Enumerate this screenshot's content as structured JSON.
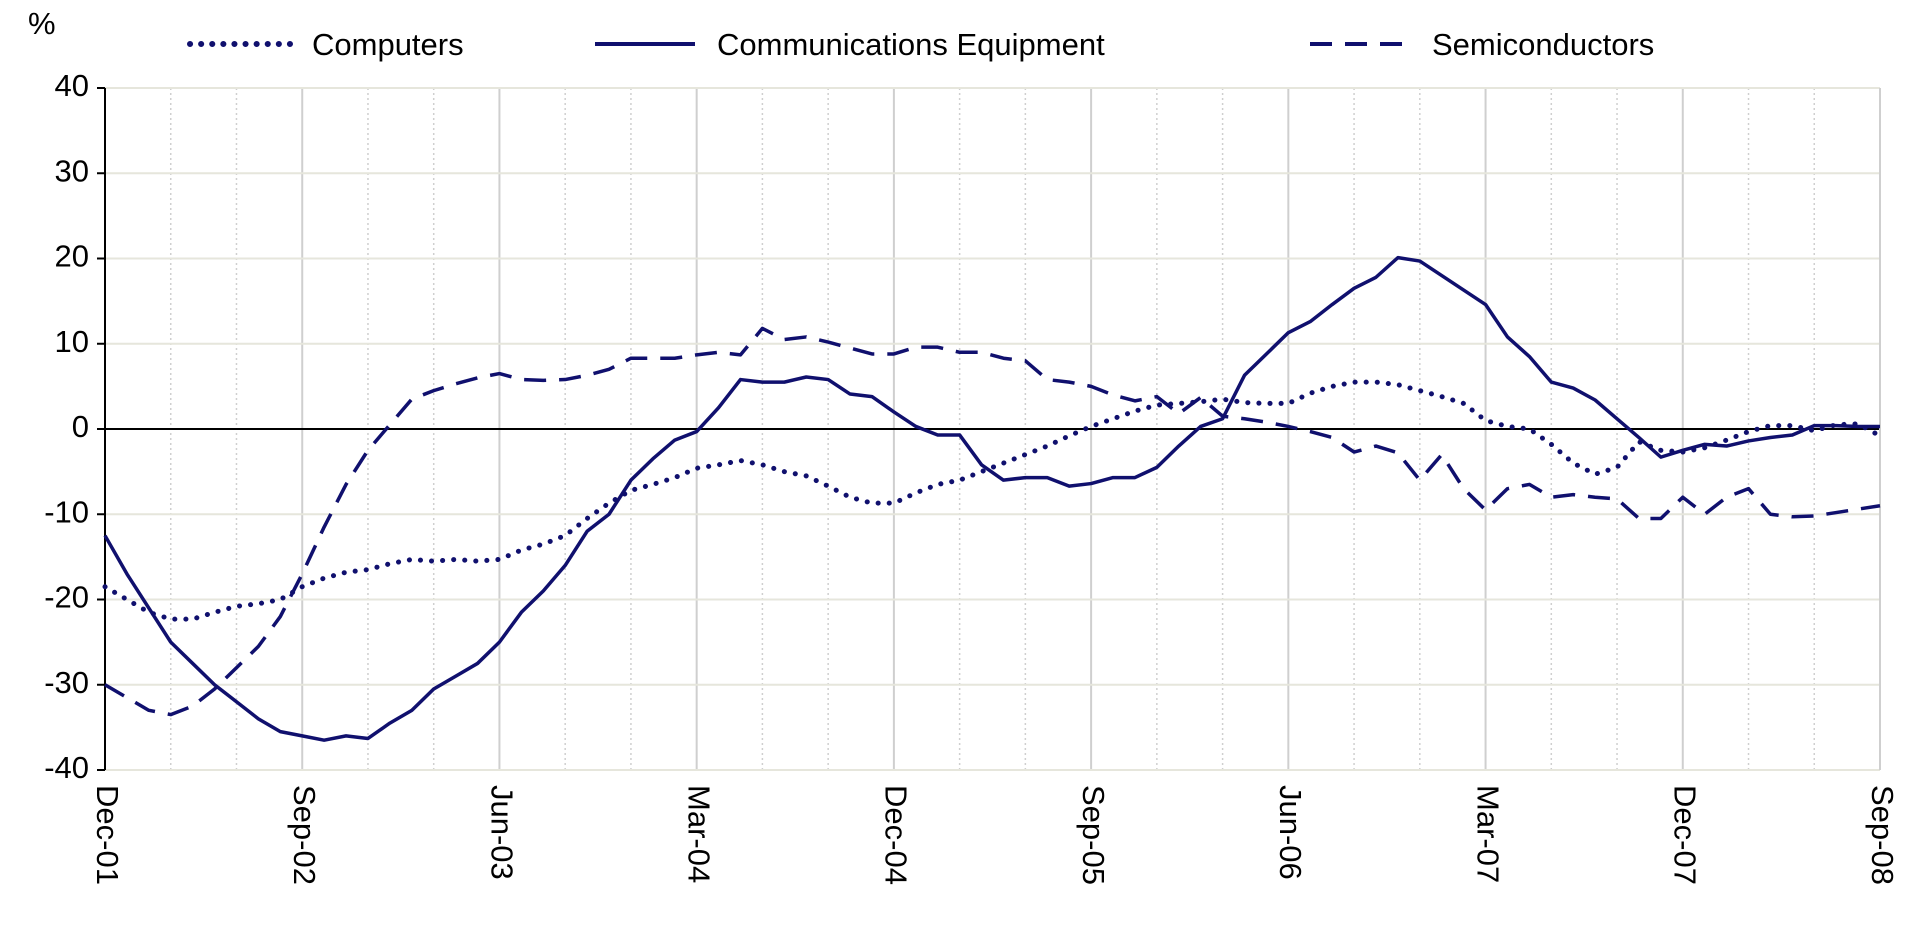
{
  "chart_data": {
    "type": "line",
    "ylabel": "%",
    "categories": [
      "Dec-01",
      null,
      null,
      null,
      null,
      null,
      null,
      null,
      null,
      "Sep-02",
      null,
      null,
      null,
      null,
      null,
      null,
      null,
      null,
      "Jun-03",
      null,
      null,
      null,
      null,
      null,
      null,
      null,
      null,
      "Mar-04",
      null,
      null,
      null,
      null,
      null,
      null,
      null,
      null,
      "Dec-04",
      null,
      null,
      null,
      null,
      null,
      null,
      null,
      null,
      "Sep-05",
      null,
      null,
      null,
      null,
      null,
      null,
      null,
      null,
      "Jun-06",
      null,
      null,
      null,
      null,
      null,
      null,
      null,
      null,
      "Mar-07",
      null,
      null,
      null,
      null,
      null,
      null,
      null,
      null,
      "Dec-07",
      null,
      null,
      null,
      null,
      null,
      null,
      null,
      null,
      "Sep-08"
    ],
    "series": [
      {
        "name": "Computers",
        "color": "#10106e",
        "style": "dotted",
        "values": [
          -18.5,
          -20,
          -21.5,
          -22.3,
          -22.3,
          -21.5,
          -20.8,
          -20.5,
          -20,
          -18.5,
          -17.5,
          -16.8,
          -16.5,
          -15.8,
          -15.3,
          -15.5,
          -15.3,
          -15.5,
          -15.3,
          -14.2,
          -13.5,
          -12.5,
          -10.5,
          -8.7,
          -7.2,
          -6.5,
          -5.7,
          -4.6,
          -4.2,
          -3.7,
          -4.2,
          -5,
          -5.5,
          -6.7,
          -8,
          -8.7,
          -8.7,
          -7.5,
          -6.5,
          -6,
          -5,
          -4,
          -3,
          -2,
          -0.8,
          0.3,
          1.2,
          2.1,
          2.8,
          3,
          3.2,
          3.5,
          3.1,
          3,
          3,
          4.2,
          5,
          5.5,
          5.5,
          5.2,
          4.5,
          3.8,
          3,
          1,
          0.3,
          0,
          -1.8,
          -4,
          -5.3,
          -4.5,
          -1.5,
          -2.5,
          -2.7,
          -2.2,
          -1.3,
          -0.3,
          0.4,
          0.4,
          -0.2,
          0.5,
          0.6,
          -0.8
        ]
      },
      {
        "name": "Communications Equipment",
        "color": "#10106e",
        "style": "solid",
        "values": [
          -12.5,
          -17,
          -21,
          -25,
          -27.5,
          -30,
          -32,
          -34,
          -35.5,
          -36,
          -36.5,
          -36,
          -36.3,
          -34.5,
          -33,
          -30.5,
          -29,
          -27.5,
          -25,
          -21.5,
          -19,
          -16,
          -12,
          -10,
          -6,
          -3.5,
          -1.3,
          -0.3,
          2.5,
          5.8,
          5.5,
          5.5,
          6.1,
          5.8,
          4.1,
          3.8,
          2,
          0.3,
          -0.7,
          -0.7,
          -4.2,
          -6,
          -5.7,
          -5.7,
          -6.7,
          -6.4,
          -5.7,
          -5.7,
          -4.5,
          -2,
          0.3,
          1.2,
          6.3,
          8.8,
          11.3,
          12.6,
          14.6,
          16.5,
          17.8,
          20.1,
          19.7,
          18,
          16.3,
          14.6,
          10.8,
          8.5,
          5.5,
          4.8,
          3.4,
          1.2,
          -1,
          -3.3,
          -2.5,
          -1.8,
          -2,
          -1.4,
          -1,
          -0.7,
          0.4,
          0.4,
          0.3,
          0.3
        ]
      },
      {
        "name": "Semiconductors",
        "color": "#10106e",
        "style": "dashed",
        "values": [
          -30,
          -31.5,
          -33,
          -33.5,
          -32.5,
          -30.5,
          -28,
          -25.5,
          -22,
          -17,
          -11.5,
          -6.5,
          -2.5,
          0.5,
          3.5,
          4.5,
          5.3,
          6,
          6.5,
          5.8,
          5.7,
          5.8,
          6.3,
          7,
          8.3,
          8.3,
          8.3,
          8.7,
          9,
          8.7,
          11.8,
          10.5,
          10.8,
          10.2,
          9.5,
          8.8,
          8.8,
          9.6,
          9.6,
          9,
          9,
          8.3,
          8,
          5.8,
          5.5,
          5,
          4,
          3.3,
          3.8,
          1.8,
          3.7,
          1.5,
          1.2,
          0.8,
          0.3,
          -0.3,
          -1,
          -2.7,
          -2,
          -2.8,
          -6,
          -3,
          -7,
          -9.5,
          -7,
          -6.5,
          -8,
          -7.7,
          -8,
          -8.2,
          -10.5,
          -10.5,
          -8,
          -10,
          -8,
          -7,
          -10,
          -10.3,
          -10.2,
          -9.8,
          -9.4,
          -9
        ]
      }
    ],
    "ylim": [
      -40,
      40
    ],
    "yticks": [
      -40,
      -30,
      -20,
      -10,
      0,
      10,
      20,
      30,
      40
    ],
    "grid": true
  }
}
